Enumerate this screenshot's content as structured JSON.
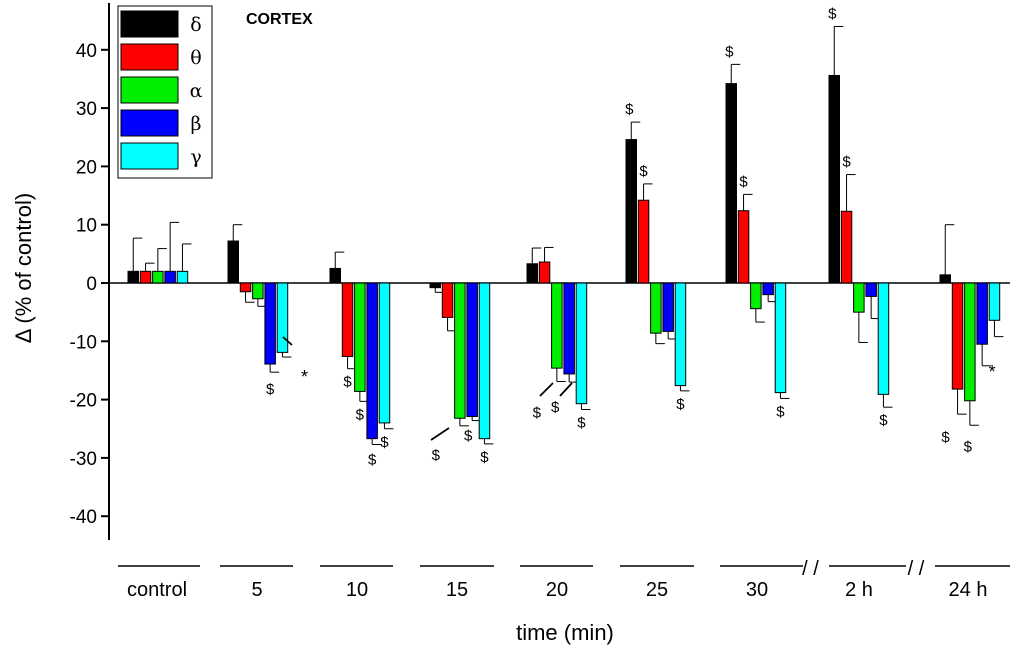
{
  "chart_data": {
    "type": "bar",
    "title": "CORTEX",
    "xlabel": "time (min)",
    "ylabel": "Δ (% of control)",
    "ylim": [
      -45,
      48
    ],
    "yticks": [
      40,
      30,
      20,
      10,
      0,
      -10,
      -20,
      -30,
      -40
    ],
    "ytick_labels": [
      "40",
      "30",
      "20",
      "10",
      "0",
      "-10",
      "-20",
      "-30",
      "-40"
    ],
    "categories": [
      "control",
      "5",
      "10",
      "15",
      "20",
      "25",
      "30",
      "2 h",
      "24 h"
    ],
    "axis_break_symbol": "/ /",
    "legend_position": "top-left",
    "series": [
      {
        "name": "δ",
        "color": "#000000",
        "values": [
          2,
          7.2,
          2.5,
          -0.8,
          3.3,
          24.6,
          34.2,
          35.6,
          1.4
        ],
        "errors": [
          5.7,
          2.8,
          2.8,
          0.8,
          2.7,
          3,
          3.3,
          8.4,
          8.6
        ]
      },
      {
        "name": "θ",
        "color": "#ff0000",
        "values": [
          2,
          -1.5,
          -12.6,
          -5.9,
          3.6,
          14.2,
          12.4,
          12.3,
          -18.2
        ],
        "errors": [
          1.4,
          1.8,
          2.1,
          2.3,
          2.5,
          2.8,
          2.8,
          6.3,
          4.3
        ]
      },
      {
        "name": "α",
        "color": "#00ee00",
        "values": [
          2,
          -2.7,
          -18.6,
          -23.2,
          -14.6,
          -8.6,
          -4.4,
          -5,
          -20.2
        ],
        "errors": [
          3.9,
          1.3,
          1.7,
          1.3,
          2.3,
          1.8,
          2.3,
          5.2,
          4.2
        ]
      },
      {
        "name": "β",
        "color": "#0000ff",
        "values": [
          2,
          -13.9,
          -26.7,
          -22.9,
          -15.6,
          -8.3,
          -2,
          -2.3,
          -10.5
        ],
        "errors": [
          8.4,
          1.4,
          1,
          0.7,
          1.4,
          1.3,
          1.2,
          3.8,
          3.7
        ]
      },
      {
        "name": "γ",
        "color": "#00ffff",
        "values": [
          2,
          -11.9,
          -24,
          -26.7,
          -20.7,
          -17.6,
          -18.8,
          -19.1,
          -6.4
        ],
        "errors": [
          4.7,
          0.8,
          1,
          0.9,
          1,
          0.9,
          1,
          2.2,
          2.8
        ]
      }
    ],
    "annotations": [
      {
        "text": "$",
        "category": "5",
        "series": "β"
      },
      {
        "text": "*",
        "category": "5",
        "series": "γ"
      },
      {
        "text": "$",
        "category": "10",
        "series": "θ"
      },
      {
        "text": "$",
        "category": "10",
        "series": "α"
      },
      {
        "text": "$",
        "category": "10",
        "series": "β"
      },
      {
        "text": "$",
        "category": "10",
        "series": "γ"
      },
      {
        "text": "$",
        "category": "15",
        "series": "α"
      },
      {
        "text": "$",
        "category": "15",
        "series": "β"
      },
      {
        "text": "$",
        "category": "15",
        "series": "γ"
      },
      {
        "text": "$",
        "category": "20",
        "series": "α"
      },
      {
        "text": "$",
        "category": "20",
        "series": "β"
      },
      {
        "text": "$",
        "category": "20",
        "series": "γ"
      },
      {
        "text": "$",
        "category": "25",
        "series": "δ"
      },
      {
        "text": "$",
        "category": "25",
        "series": "θ"
      },
      {
        "text": "$",
        "category": "25",
        "series": "γ"
      },
      {
        "text": "$",
        "category": "30",
        "series": "δ"
      },
      {
        "text": "$",
        "category": "30",
        "series": "θ"
      },
      {
        "text": "$",
        "category": "30",
        "series": "γ"
      },
      {
        "text": "$",
        "category": "2 h",
        "series": "δ"
      },
      {
        "text": "$",
        "category": "2 h",
        "series": "θ"
      },
      {
        "text": "$",
        "category": "2 h",
        "series": "γ"
      },
      {
        "text": "$",
        "category": "24 h",
        "series": "θ"
      },
      {
        "text": "$",
        "category": "24 h",
        "series": "α"
      },
      {
        "text": "*",
        "category": "24 h",
        "series": "β"
      }
    ]
  }
}
